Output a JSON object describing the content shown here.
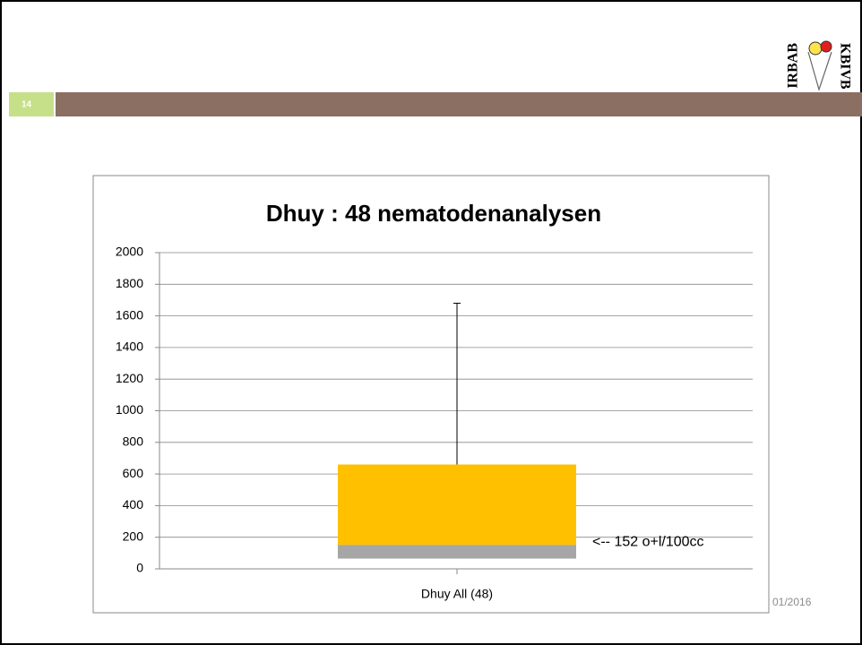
{
  "slide": {
    "number": "14",
    "date": "01/2016",
    "logo": [
      "IRBAB",
      "KBIVB"
    ]
  },
  "chart_data": {
    "type": "box",
    "title": "Dhuy : 48 nematodenanalysen",
    "categories": [
      "Dhuy All (48)"
    ],
    "q1": 65,
    "median": 152,
    "q3": 660,
    "max": 1680,
    "colors": {
      "lower": "#a6a6a6",
      "upper": "#ffc000"
    },
    "annotation": "<-- 152 o+l/100cc",
    "ylim": [
      0,
      2000
    ],
    "yticks": [
      0,
      200,
      400,
      600,
      800,
      1000,
      1200,
      1400,
      1600,
      1800,
      2000
    ],
    "grid": true
  }
}
